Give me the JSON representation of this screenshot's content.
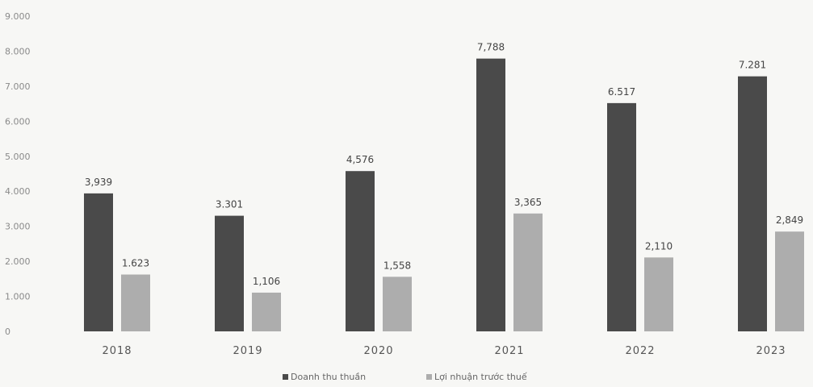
{
  "chart_data": {
    "type": "bar",
    "categories": [
      "2018",
      "2019",
      "2020",
      "2021",
      "2022",
      "2023"
    ],
    "series": [
      {
        "name": "Doanh thu thuần",
        "values": [
          3939,
          3301,
          4576,
          7788,
          6517,
          7281
        ],
        "labels": [
          "3,939",
          "3.301",
          "4,576",
          "7,788",
          "6.517",
          "7.281"
        ],
        "color": "#4a4a4a"
      },
      {
        "name": "Lợi nhuận trước thuế",
        "values": [
          1623,
          1106,
          1558,
          3365,
          2110,
          2849
        ],
        "labels": [
          "1.623",
          "1,106",
          "1,558",
          "3,365",
          "2,110",
          "2,849"
        ],
        "color": "#adadad"
      }
    ],
    "yticks": [
      "0",
      "1.000",
      "2.000",
      "3.000",
      "4.000",
      "5.000",
      "6.000",
      "7.000",
      "8.000",
      "9.000"
    ],
    "ylim": [
      0,
      9000
    ],
    "grid": false,
    "legend_position": "bottom"
  }
}
